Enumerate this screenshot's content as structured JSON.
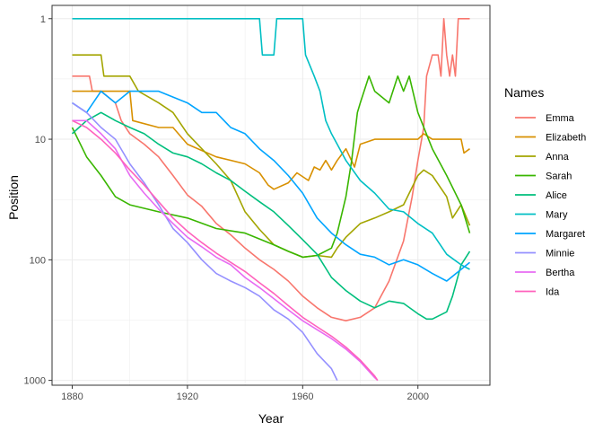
{
  "chart_data": {
    "type": "line",
    "xlabel": "Year",
    "ylabel": "Position",
    "xlim": [
      1873,
      2025
    ],
    "ylim": [
      1,
      1000
    ],
    "y_scale": "log",
    "y_reversed": true,
    "x_ticks": [
      1880,
      1920,
      1960,
      2000
    ],
    "y_ticks": [
      1,
      10,
      100,
      1000
    ],
    "grid": true,
    "legend": {
      "title": "Names",
      "position": "right"
    },
    "series": [
      {
        "name": "Emma",
        "color": "#F8766D",
        "points": [
          [
            1880,
            3
          ],
          [
            1886,
            3
          ],
          [
            1887,
            4
          ],
          [
            1890,
            4
          ],
          [
            1895,
            5
          ],
          [
            1897,
            7
          ],
          [
            1900,
            9
          ],
          [
            1905,
            11
          ],
          [
            1910,
            14
          ],
          [
            1915,
            20
          ],
          [
            1920,
            29
          ],
          [
            1925,
            36
          ],
          [
            1930,
            50
          ],
          [
            1935,
            62
          ],
          [
            1940,
            80
          ],
          [
            1945,
            100
          ],
          [
            1950,
            120
          ],
          [
            1955,
            150
          ],
          [
            1960,
            200
          ],
          [
            1965,
            250
          ],
          [
            1970,
            300
          ],
          [
            1975,
            320
          ],
          [
            1980,
            300
          ],
          [
            1985,
            250
          ],
          [
            1990,
            150
          ],
          [
            1995,
            70
          ],
          [
            1998,
            30
          ],
          [
            2000,
            15
          ],
          [
            2002,
            8
          ],
          [
            2003,
            3
          ],
          [
            2005,
            2
          ],
          [
            2007,
            2
          ],
          [
            2008,
            3
          ],
          [
            2009,
            1
          ],
          [
            2010,
            2
          ],
          [
            2011,
            3
          ],
          [
            2012,
            2
          ],
          [
            2013,
            3
          ],
          [
            2014,
            1
          ],
          [
            2017,
            1
          ],
          [
            2018,
            1
          ]
        ]
      },
      {
        "name": "Elizabeth",
        "color": "#D89000",
        "points": [
          [
            1880,
            4
          ],
          [
            1900,
            4
          ],
          [
            1901,
            7
          ],
          [
            1910,
            8
          ],
          [
            1915,
            8
          ],
          [
            1920,
            11
          ],
          [
            1930,
            14
          ],
          [
            1940,
            16
          ],
          [
            1945,
            19
          ],
          [
            1948,
            24
          ],
          [
            1950,
            26
          ],
          [
            1955,
            23
          ],
          [
            1958,
            19
          ],
          [
            1962,
            22
          ],
          [
            1964,
            17
          ],
          [
            1966,
            18
          ],
          [
            1968,
            15
          ],
          [
            1970,
            18
          ],
          [
            1972,
            15
          ],
          [
            1975,
            12
          ],
          [
            1978,
            17
          ],
          [
            1980,
            11
          ],
          [
            1985,
            10
          ],
          [
            1990,
            10
          ],
          [
            1995,
            10
          ],
          [
            2000,
            10
          ],
          [
            2002,
            9
          ],
          [
            2005,
            10
          ],
          [
            2010,
            10
          ],
          [
            2015,
            10
          ],
          [
            2016,
            13
          ],
          [
            2018,
            12
          ]
        ]
      },
      {
        "name": "Anna",
        "color": "#A3A500",
        "points": [
          [
            1880,
            2
          ],
          [
            1890,
            2
          ],
          [
            1891,
            3
          ],
          [
            1900,
            3
          ],
          [
            1903,
            4
          ],
          [
            1910,
            5
          ],
          [
            1915,
            6
          ],
          [
            1920,
            9
          ],
          [
            1925,
            12
          ],
          [
            1930,
            16
          ],
          [
            1935,
            22
          ],
          [
            1940,
            40
          ],
          [
            1945,
            56
          ],
          [
            1950,
            75
          ],
          [
            1955,
            85
          ],
          [
            1960,
            95
          ],
          [
            1965,
            92
          ],
          [
            1970,
            95
          ],
          [
            1972,
            80
          ],
          [
            1975,
            65
          ],
          [
            1980,
            50
          ],
          [
            1985,
            45
          ],
          [
            1990,
            40
          ],
          [
            1995,
            35
          ],
          [
            2000,
            20
          ],
          [
            2002,
            18
          ],
          [
            2005,
            20
          ],
          [
            2010,
            30
          ],
          [
            2012,
            45
          ],
          [
            2015,
            35
          ],
          [
            2018,
            52
          ]
        ]
      },
      {
        "name": "Sarah",
        "color": "#39B600",
        "points": [
          [
            1880,
            8
          ],
          [
            1885,
            14
          ],
          [
            1890,
            20
          ],
          [
            1895,
            30
          ],
          [
            1900,
            35
          ],
          [
            1910,
            40
          ],
          [
            1920,
            45
          ],
          [
            1930,
            55
          ],
          [
            1940,
            60
          ],
          [
            1950,
            75
          ],
          [
            1955,
            85
          ],
          [
            1960,
            95
          ],
          [
            1965,
            92
          ],
          [
            1970,
            80
          ],
          [
            1972,
            60
          ],
          [
            1975,
            30
          ],
          [
            1977,
            15
          ],
          [
            1979,
            6
          ],
          [
            1980,
            5
          ],
          [
            1983,
            3
          ],
          [
            1985,
            4
          ],
          [
            1990,
            5
          ],
          [
            1993,
            3
          ],
          [
            1995,
            4
          ],
          [
            1997,
            3
          ],
          [
            2000,
            6
          ],
          [
            2005,
            12
          ],
          [
            2010,
            20
          ],
          [
            2015,
            35
          ],
          [
            2018,
            60
          ]
        ]
      },
      {
        "name": "Alice",
        "color": "#00BF7D",
        "points": [
          [
            1880,
            9
          ],
          [
            1885,
            7
          ],
          [
            1890,
            6
          ],
          [
            1895,
            7
          ],
          [
            1900,
            8
          ],
          [
            1905,
            9
          ],
          [
            1910,
            11
          ],
          [
            1915,
            13
          ],
          [
            1920,
            14
          ],
          [
            1925,
            16
          ],
          [
            1930,
            19
          ],
          [
            1935,
            22
          ],
          [
            1940,
            27
          ],
          [
            1945,
            33
          ],
          [
            1950,
            40
          ],
          [
            1955,
            52
          ],
          [
            1960,
            68
          ],
          [
            1965,
            90
          ],
          [
            1970,
            140
          ],
          [
            1975,
            180
          ],
          [
            1980,
            220
          ],
          [
            1985,
            250
          ],
          [
            1990,
            220
          ],
          [
            1995,
            230
          ],
          [
            2000,
            280
          ],
          [
            2003,
            310
          ],
          [
            2005,
            310
          ],
          [
            2010,
            270
          ],
          [
            2012,
            200
          ],
          [
            2015,
            110
          ],
          [
            2018,
            85
          ]
        ]
      },
      {
        "name": "Mary",
        "color": "#00BFC4",
        "points": [
          [
            1880,
            1
          ],
          [
            1945,
            1
          ],
          [
            1946,
            2
          ],
          [
            1950,
            2
          ],
          [
            1951,
            1
          ],
          [
            1960,
            1
          ],
          [
            1961,
            2
          ],
          [
            1964,
            3
          ],
          [
            1966,
            4
          ],
          [
            1968,
            7
          ],
          [
            1970,
            9
          ],
          [
            1972,
            11
          ],
          [
            1975,
            15
          ],
          [
            1980,
            22
          ],
          [
            1985,
            28
          ],
          [
            1990,
            38
          ],
          [
            1995,
            40
          ],
          [
            2000,
            50
          ],
          [
            2005,
            60
          ],
          [
            2010,
            90
          ],
          [
            2015,
            110
          ],
          [
            2018,
            120
          ]
        ]
      },
      {
        "name": "Margaret",
        "color": "#00A5FF",
        "points": [
          [
            1880,
            5
          ],
          [
            1885,
            6
          ],
          [
            1890,
            4
          ],
          [
            1895,
            5
          ],
          [
            1900,
            4
          ],
          [
            1910,
            4
          ],
          [
            1920,
            5
          ],
          [
            1925,
            6
          ],
          [
            1930,
            6
          ],
          [
            1935,
            8
          ],
          [
            1940,
            9
          ],
          [
            1945,
            12
          ],
          [
            1950,
            15
          ],
          [
            1955,
            20
          ],
          [
            1960,
            28
          ],
          [
            1965,
            45
          ],
          [
            1970,
            60
          ],
          [
            1975,
            75
          ],
          [
            1980,
            90
          ],
          [
            1985,
            95
          ],
          [
            1990,
            110
          ],
          [
            1995,
            100
          ],
          [
            2000,
            110
          ],
          [
            2005,
            130
          ],
          [
            2010,
            150
          ],
          [
            2015,
            120
          ],
          [
            2018,
            105
          ]
        ]
      },
      {
        "name": "Minnie",
        "color": "#9590FF",
        "points": [
          [
            1880,
            5
          ],
          [
            1885,
            6
          ],
          [
            1890,
            8
          ],
          [
            1895,
            10
          ],
          [
            1900,
            16
          ],
          [
            1905,
            23
          ],
          [
            1910,
            35
          ],
          [
            1915,
            55
          ],
          [
            1920,
            72
          ],
          [
            1925,
            100
          ],
          [
            1930,
            130
          ],
          [
            1935,
            150
          ],
          [
            1940,
            170
          ],
          [
            1945,
            200
          ],
          [
            1950,
            260
          ],
          [
            1955,
            310
          ],
          [
            1960,
            400
          ],
          [
            1965,
            600
          ],
          [
            1970,
            800
          ],
          [
            1972,
            1000
          ]
        ]
      },
      {
        "name": "Bertha",
        "color": "#E76BF3",
        "points": [
          [
            1880,
            7
          ],
          [
            1885,
            7
          ],
          [
            1890,
            9
          ],
          [
            1895,
            12
          ],
          [
            1900,
            20
          ],
          [
            1905,
            28
          ],
          [
            1910,
            38
          ],
          [
            1915,
            50
          ],
          [
            1920,
            65
          ],
          [
            1925,
            78
          ],
          [
            1930,
            95
          ],
          [
            1935,
            110
          ],
          [
            1940,
            140
          ],
          [
            1945,
            170
          ],
          [
            1950,
            210
          ],
          [
            1955,
            260
          ],
          [
            1960,
            320
          ],
          [
            1965,
            380
          ],
          [
            1970,
            450
          ],
          [
            1975,
            550
          ],
          [
            1980,
            700
          ],
          [
            1985,
            950
          ],
          [
            1986,
            1000
          ]
        ]
      },
      {
        "name": "Ida",
        "color": "#FF62BC",
        "points": [
          [
            1880,
            7
          ],
          [
            1885,
            8
          ],
          [
            1890,
            10
          ],
          [
            1895,
            13
          ],
          [
            1900,
            18
          ],
          [
            1905,
            24
          ],
          [
            1910,
            33
          ],
          [
            1915,
            45
          ],
          [
            1920,
            58
          ],
          [
            1925,
            72
          ],
          [
            1930,
            88
          ],
          [
            1935,
            105
          ],
          [
            1940,
            125
          ],
          [
            1945,
            155
          ],
          [
            1950,
            190
          ],
          [
            1955,
            240
          ],
          [
            1960,
            300
          ],
          [
            1965,
            360
          ],
          [
            1970,
            430
          ],
          [
            1975,
            530
          ],
          [
            1980,
            680
          ],
          [
            1985,
            920
          ],
          [
            1986,
            1000
          ]
        ]
      }
    ]
  }
}
